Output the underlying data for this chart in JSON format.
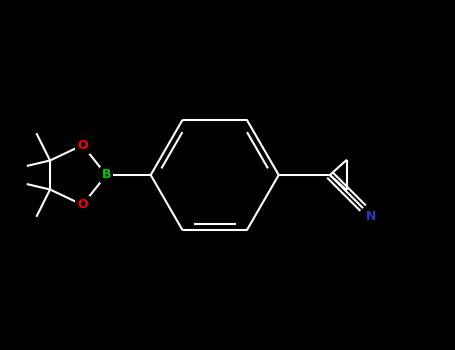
{
  "background_color": "#000000",
  "bond_color": "#ffffff",
  "atom_colors": {
    "B": "#00cc00",
    "O": "#ff0000",
    "N": "#3333bb",
    "C": "#ffffff"
  },
  "bond_width": 1.5,
  "figsize": [
    4.55,
    3.5
  ],
  "dpi": 100,
  "xlim": [
    -2.5,
    2.8
  ],
  "ylim": [
    -2.0,
    2.0
  ]
}
